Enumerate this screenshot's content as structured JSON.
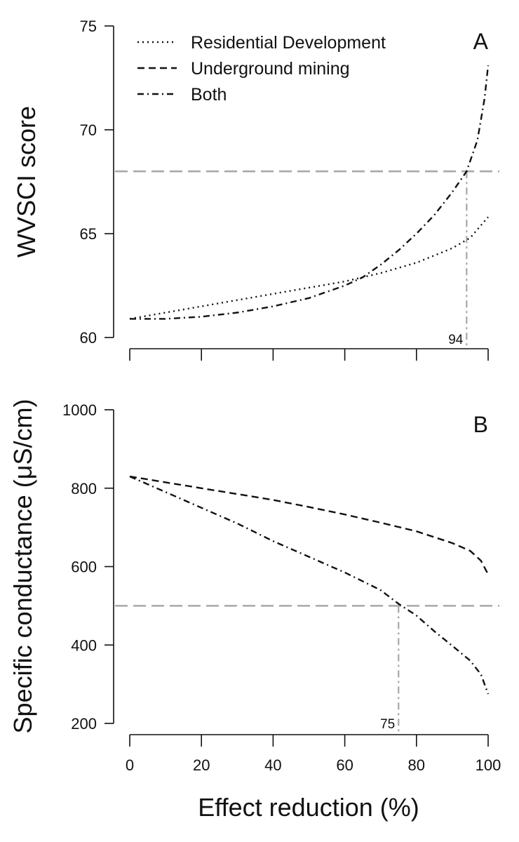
{
  "chart_data": [
    {
      "id": "A",
      "type": "line",
      "panel_label": "A",
      "ylabel": "WVSCI score",
      "ylim": [
        60,
        75
      ],
      "yticks": [
        60,
        65,
        70,
        75
      ],
      "xlim": [
        0,
        100
      ],
      "xticks": [
        0,
        20,
        40,
        60,
        80,
        100
      ],
      "reference_line": {
        "y": 68
      },
      "threshold_marker": {
        "x": 94,
        "label": "94"
      },
      "legend": [
        {
          "label": "Residential Development",
          "style": "dotted"
        },
        {
          "label": "Underground mining",
          "style": "dashed"
        },
        {
          "label": "Both",
          "style": "dashdot"
        }
      ],
      "series": [
        {
          "name": "Residential Development",
          "style": "dotted",
          "x": [
            0,
            10,
            20,
            30,
            40,
            50,
            60,
            70,
            80,
            90,
            95,
            100
          ],
          "y": [
            60.9,
            61.2,
            61.5,
            61.8,
            62.1,
            62.4,
            62.7,
            63.1,
            63.6,
            64.3,
            64.8,
            65.8
          ]
        },
        {
          "name": "Both",
          "style": "dashdot",
          "x": [
            0,
            10,
            20,
            30,
            40,
            50,
            60,
            65,
            70,
            75,
            80,
            85,
            90,
            94,
            97,
            99,
            100
          ],
          "y": [
            60.9,
            60.9,
            61.0,
            61.2,
            61.5,
            61.9,
            62.5,
            62.9,
            63.5,
            64.2,
            65.0,
            65.9,
            67.0,
            68.0,
            69.5,
            71.5,
            73.1
          ]
        }
      ]
    },
    {
      "id": "B",
      "type": "line",
      "panel_label": "B",
      "ylabel": "Specific conductance (μS/cm)",
      "ylim": [
        200,
        1000
      ],
      "yticks": [
        200,
        400,
        600,
        800,
        1000
      ],
      "xlim": [
        0,
        100
      ],
      "xticks": [
        0,
        20,
        40,
        60,
        80,
        100
      ],
      "xlabel": "Effect reduction (%)",
      "reference_line": {
        "y": 500
      },
      "threshold_marker": {
        "x": 75,
        "label": "75"
      },
      "series": [
        {
          "name": "Underground mining",
          "style": "dashed",
          "x": [
            0,
            10,
            20,
            30,
            40,
            50,
            60,
            70,
            80,
            90,
            95,
            98,
            100
          ],
          "y": [
            830,
            815,
            800,
            785,
            770,
            752,
            733,
            712,
            690,
            660,
            640,
            615,
            580
          ]
        },
        {
          "name": "Both",
          "style": "dashdot",
          "x": [
            0,
            10,
            20,
            30,
            40,
            50,
            60,
            70,
            75,
            80,
            85,
            90,
            95,
            98,
            100
          ],
          "y": [
            830,
            790,
            750,
            710,
            665,
            625,
            585,
            540,
            505,
            475,
            435,
            398,
            360,
            325,
            275
          ]
        }
      ]
    }
  ]
}
